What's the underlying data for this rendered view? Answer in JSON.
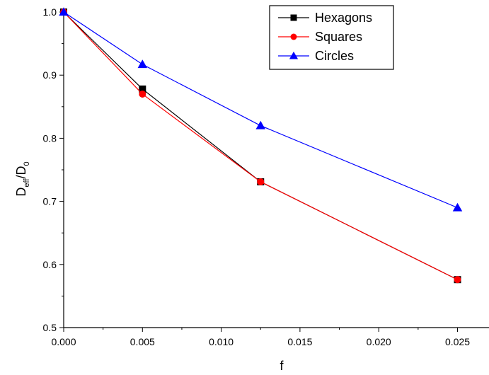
{
  "chart_data": {
    "type": "line",
    "xlabel": "f",
    "ylabel": {
      "main1": "D",
      "sub1": "eff",
      "sep": "/D",
      "sub2": "0"
    },
    "xlim": [
      0.0,
      0.027
    ],
    "ylim": [
      0.5,
      1.0
    ],
    "xticks": [
      0.0,
      0.005,
      0.01,
      0.015,
      0.02,
      0.025
    ],
    "xtick_labels": [
      "0.000",
      "0.005",
      "0.010",
      "0.015",
      "0.020",
      "0.025"
    ],
    "yticks": [
      0.5,
      0.6,
      0.7,
      0.8,
      0.9,
      1.0
    ],
    "ytick_labels": [
      "0.5",
      "0.6",
      "0.7",
      "0.8",
      "0.9",
      "1.0"
    ],
    "legend_position": "top-right",
    "series": [
      {
        "name": "Hexagons",
        "color": "#000000",
        "marker": "square",
        "x": [
          0.0,
          0.005,
          0.0125,
          0.025
        ],
        "y": [
          1.0,
          0.878,
          0.731,
          0.576
        ]
      },
      {
        "name": "Squares",
        "color": "#ff0000",
        "marker": "circle",
        "x": [
          0.0,
          0.005,
          0.0125,
          0.025
        ],
        "y": [
          1.0,
          0.87,
          0.731,
          0.576
        ]
      },
      {
        "name": "Circles",
        "color": "#0000ff",
        "marker": "triangle",
        "x": [
          0.0,
          0.005,
          0.0125,
          0.025
        ],
        "y": [
          1.0,
          0.917,
          0.82,
          0.69
        ]
      }
    ]
  }
}
